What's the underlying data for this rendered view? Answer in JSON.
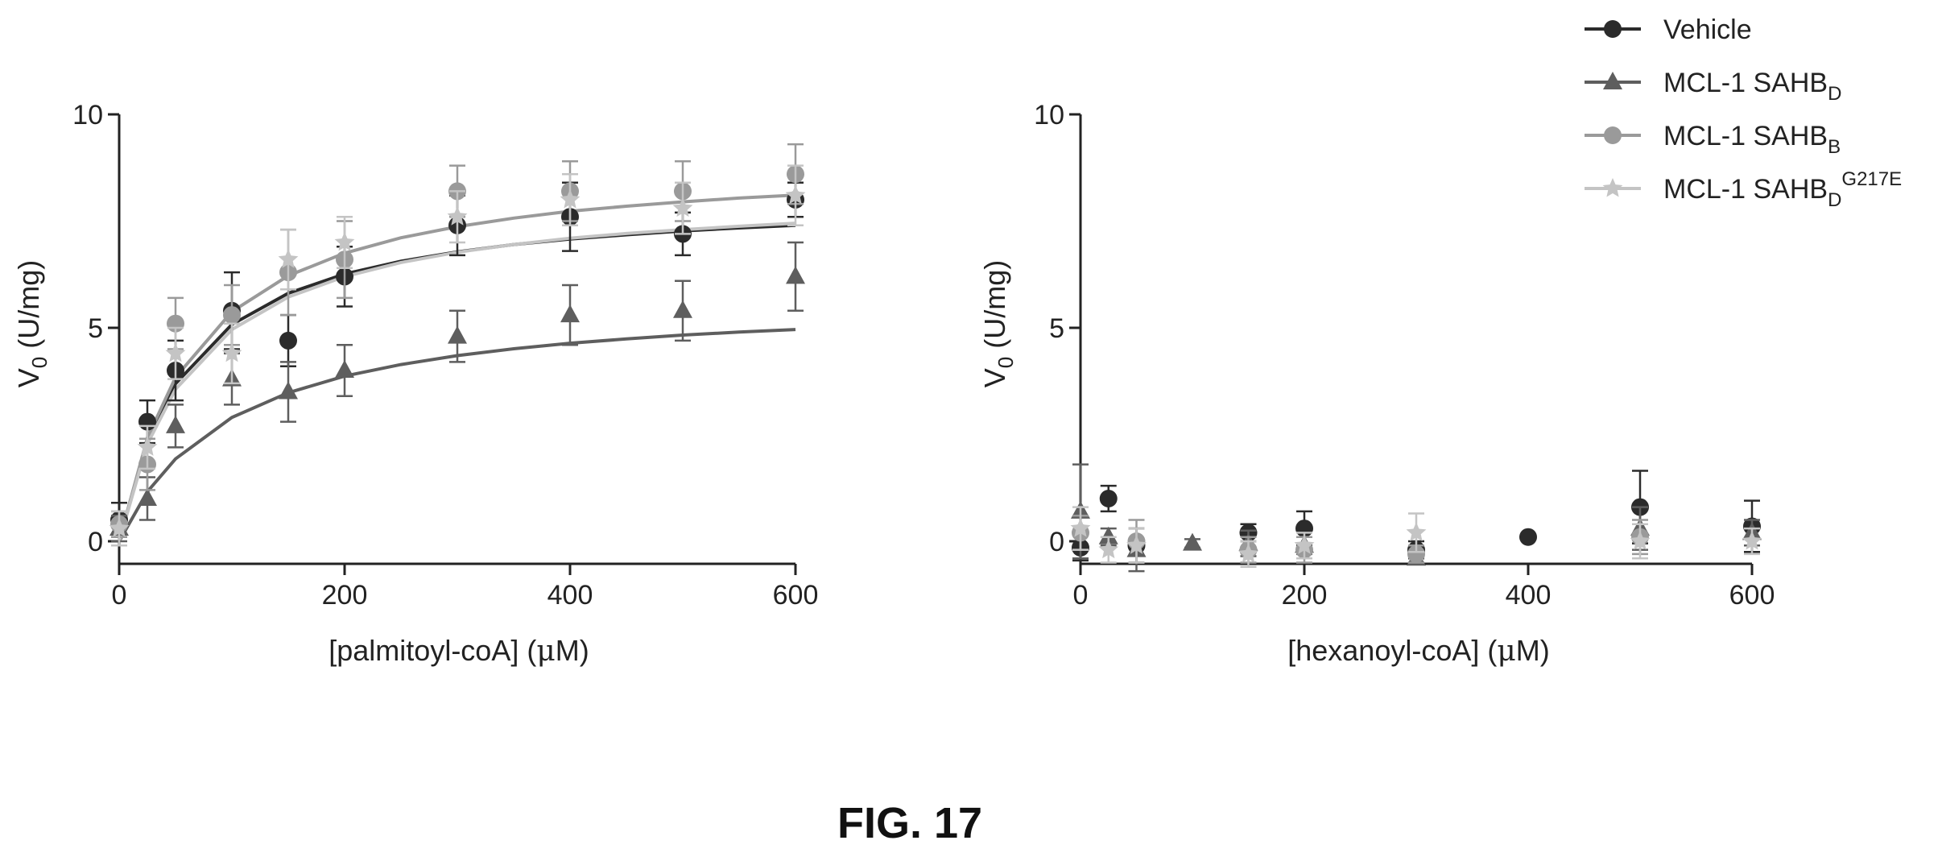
{
  "figure_label": "FIG. 17",
  "legend": [
    {
      "label": "Vehicle",
      "marker": "circle",
      "color": "#2b2b2b"
    },
    {
      "label": "MCL-1 SAHB",
      "sub": "D",
      "sup": "",
      "marker": "triangle",
      "color": "#5e5e5e"
    },
    {
      "label": "MCL-1 SAHB",
      "sub": "B",
      "sup": "",
      "marker": "circle",
      "color": "#9a9a9a"
    },
    {
      "label": "MCL-1 SAHB",
      "sub": "D",
      "sup": "G217E",
      "marker": "star",
      "color": "#c4c4c4"
    }
  ],
  "chart_data": [
    {
      "type": "scatter",
      "fit": "michaelis-menten",
      "ylabel": {
        "main": "V",
        "sub": "0",
        "rest": " (U/mg)"
      },
      "xlabel": {
        "pre": "[palmitoyl-coA] (",
        "mu": "μ",
        "post": "M)"
      },
      "xlim": [
        0,
        600
      ],
      "ylim": [
        0,
        10
      ],
      "xticks": [
        "0",
        "200",
        "400",
        "600"
      ],
      "yticks": [
        "0",
        "5",
        "10"
      ],
      "series": [
        {
          "name": "Vehicle",
          "marker": "circle",
          "color": "#2b2b2b",
          "x": [
            0,
            25,
            50,
            100,
            150,
            200,
            300,
            400,
            500,
            600
          ],
          "y": [
            0.5,
            2.8,
            4.0,
            5.4,
            4.7,
            6.2,
            7.4,
            7.6,
            7.2,
            8.0
          ],
          "err": [
            0.4,
            0.5,
            0.7,
            0.9,
            0.6,
            0.7,
            0.7,
            0.8,
            0.5,
            0.4
          ],
          "fit": [
            0,
            25,
            50,
            100,
            150,
            200,
            250,
            300,
            350,
            400,
            450,
            500,
            550,
            600
          ],
          "fit_y": [
            0.0,
            2.38,
            3.69,
            5.08,
            5.81,
            6.26,
            6.56,
            6.78,
            6.95,
            7.08,
            7.18,
            7.27,
            7.34,
            7.4
          ]
        },
        {
          "name": "MCL-1 SAHBD",
          "marker": "triangle",
          "color": "#5e5e5e",
          "x": [
            0,
            25,
            50,
            100,
            150,
            200,
            300,
            400,
            500,
            600
          ],
          "y": [
            0.3,
            1.0,
            2.7,
            3.8,
            3.5,
            4.0,
            4.8,
            5.3,
            5.4,
            6.2
          ],
          "err": [
            0.3,
            0.5,
            0.5,
            0.6,
            0.7,
            0.6,
            0.6,
            0.7,
            0.7,
            0.8
          ],
          "fit": [
            0,
            25,
            50,
            100,
            150,
            200,
            250,
            300,
            350,
            400,
            450,
            500,
            550,
            600
          ],
          "fit_y": [
            0.0,
            1.16,
            1.93,
            2.9,
            3.48,
            3.87,
            4.14,
            4.35,
            4.51,
            4.64,
            4.74,
            4.83,
            4.9,
            4.96
          ]
        },
        {
          "name": "MCL-1 SAHBB",
          "marker": "circle",
          "color": "#9a9a9a",
          "x": [
            0,
            25,
            50,
            100,
            150,
            200,
            300,
            400,
            500,
            600
          ],
          "y": [
            0.4,
            1.8,
            5.1,
            5.3,
            6.3,
            6.6,
            8.2,
            8.2,
            8.2,
            8.6
          ],
          "err": [
            0.3,
            0.6,
            0.6,
            0.7,
            1.0,
            0.9,
            0.6,
            0.7,
            0.7,
            0.7
          ],
          "fit": [
            0,
            25,
            50,
            100,
            150,
            200,
            250,
            300,
            350,
            400,
            450,
            500,
            550,
            600
          ],
          "fit_y": [
            0.0,
            2.42,
            3.84,
            5.38,
            6.22,
            6.75,
            7.11,
            7.37,
            7.57,
            7.73,
            7.85,
            7.95,
            8.04,
            8.11
          ]
        },
        {
          "name": "MCL-1 SAHBDG217E",
          "marker": "star",
          "color": "#c4c4c4",
          "x": [
            0,
            25,
            50,
            100,
            150,
            200,
            300,
            400,
            500,
            600
          ],
          "y": [
            0.3,
            2.2,
            4.4,
            4.4,
            6.6,
            7.0,
            7.6,
            8.0,
            7.8,
            8.1
          ],
          "err": [
            0.4,
            0.5,
            0.6,
            0.7,
            0.7,
            0.6,
            0.6,
            0.6,
            0.6,
            0.7
          ],
          "fit": [
            0,
            25,
            50,
            100,
            150,
            200,
            250,
            300,
            350,
            400,
            450,
            500,
            550,
            600
          ],
          "fit_y": [
            0.0,
            2.28,
            3.56,
            4.96,
            5.72,
            6.2,
            6.53,
            6.77,
            6.95,
            7.1,
            7.21,
            7.3,
            7.38,
            7.45
          ]
        }
      ]
    },
    {
      "type": "scatter",
      "ylabel": {
        "main": "V",
        "sub": "0",
        "rest": " (U/mg)"
      },
      "xlabel": {
        "pre": "[hexanoyl-coA] (",
        "mu": "μ",
        "post": "M)"
      },
      "xlim": [
        0,
        600
      ],
      "ylim": [
        0,
        10
      ],
      "xticks": [
        "0",
        "200",
        "400",
        "600"
      ],
      "yticks": [
        "0",
        "5",
        "10"
      ],
      "series": [
        {
          "name": "Vehicle",
          "marker": "circle",
          "color": "#2b2b2b",
          "x": [
            0,
            25,
            50,
            150,
            200,
            300,
            400,
            500,
            600
          ],
          "y": [
            -0.15,
            1.0,
            -0.1,
            0.2,
            0.3,
            -0.2,
            0.1,
            0.8,
            0.35
          ],
          "err": [
            0.3,
            0.3,
            0.4,
            0.2,
            0.4,
            0.2,
            0.05,
            0.85,
            0.6
          ]
        },
        {
          "name": "MCL-1 SAHBD",
          "marker": "triangle",
          "color": "#5e5e5e",
          "x": [
            0,
            25,
            50,
            100,
            150,
            200,
            300,
            500,
            600
          ],
          "y": [
            0.7,
            0.1,
            -0.2,
            -0.05,
            -0.05,
            -0.1,
            -0.4,
            0.3,
            0.2
          ],
          "err": [
            1.1,
            0.2,
            0.5,
            0.1,
            0.3,
            0.2,
            0.1,
            0.5,
            0.3
          ]
        },
        {
          "name": "MCL-1 SAHBB",
          "marker": "circle",
          "color": "#9a9a9a",
          "x": [
            0,
            50,
            150,
            200,
            300,
            500
          ],
          "y": [
            0.2,
            0.0,
            -0.2,
            -0.2,
            -0.3,
            0.1
          ],
          "err": [
            0.4,
            0.5,
            0.3,
            0.3,
            0.2,
            0.4
          ]
        },
        {
          "name": "MCL-1 SAHBDG217E",
          "marker": "star",
          "color": "#c4c4c4",
          "x": [
            0,
            25,
            50,
            150,
            200,
            300,
            500,
            600
          ],
          "y": [
            0.3,
            -0.2,
            -0.1,
            -0.3,
            -0.1,
            0.2,
            0.0,
            0.0
          ],
          "err": [
            0.5,
            0.3,
            0.4,
            0.3,
            0.3,
            0.45,
            0.4,
            0.3
          ]
        }
      ]
    }
  ]
}
